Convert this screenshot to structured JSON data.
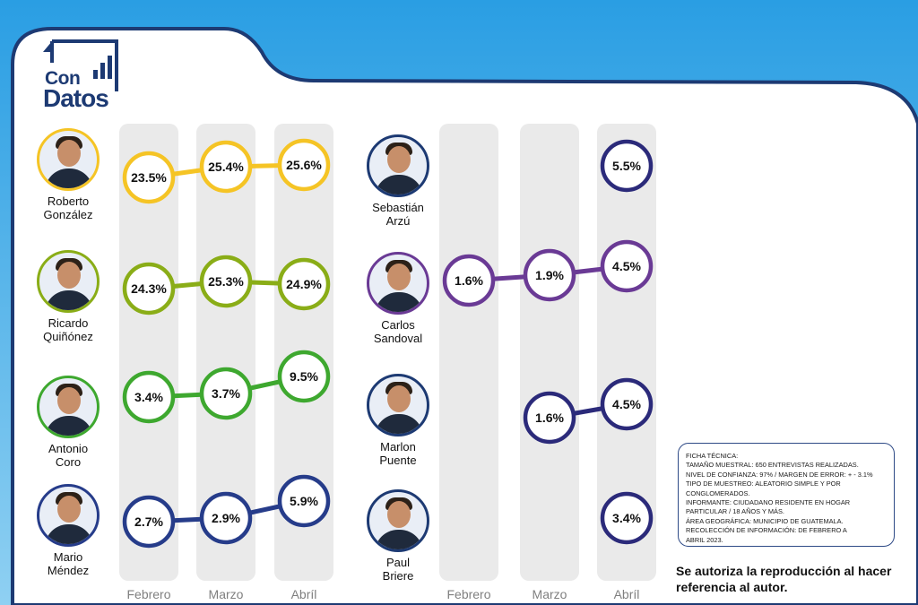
{
  "brand": {
    "line1": "Con",
    "line2": "Datos"
  },
  "colors": {
    "header_blue": "#2a9ee3",
    "frame_navy": "#1d3a73",
    "column_gray": "#eaeaea",
    "month_label": "#7f7f7f"
  },
  "chart_data": [
    {
      "type": "line",
      "categories": [
        "Febrero",
        "Marzo",
        "Abríl"
      ],
      "series": [
        {
          "name": "Roberto González",
          "color": "#f5c425",
          "values": [
            23.5,
            25.4,
            25.6
          ]
        },
        {
          "name": "Ricardo Quiñónez",
          "color": "#8aad17",
          "values": [
            24.3,
            25.3,
            24.9
          ]
        },
        {
          "name": "Antonio Coro",
          "color": "#3ea82f",
          "values": [
            3.4,
            3.7,
            9.5
          ]
        },
        {
          "name": "Mario Méndez",
          "color": "#263c8a",
          "values": [
            2.7,
            2.9,
            5.9
          ]
        }
      ],
      "value_suffix": "%"
    },
    {
      "type": "line",
      "categories": [
        "Febrero",
        "Marzo",
        "Abríl"
      ],
      "series": [
        {
          "name": "Sebastián Arzú",
          "color": "#2b2a7a",
          "values": [
            null,
            null,
            5.5
          ]
        },
        {
          "name": "Carlos Sandoval",
          "color": "#6a3a95",
          "values": [
            1.6,
            1.9,
            4.5
          ]
        },
        {
          "name": "Marlon Puente",
          "color": "#2b2a7a",
          "values": [
            null,
            1.6,
            4.5
          ]
        },
        {
          "name": "Paul Briere",
          "color": "#2b2a7a",
          "values": [
            null,
            null,
            3.4
          ]
        }
      ],
      "value_suffix": "%"
    }
  ],
  "candidates_left": [
    {
      "line1": "Roberto",
      "line2": "González"
    },
    {
      "line1": "Ricardo",
      "line2": "Quiñónez"
    },
    {
      "line1": "Antonio",
      "line2": "Coro"
    },
    {
      "line1": "Mario",
      "line2": "Méndez"
    }
  ],
  "candidates_right": [
    {
      "line1": "Sebastián",
      "line2": "Arzú"
    },
    {
      "line1": "Carlos",
      "line2": "Sandoval"
    },
    {
      "line1": "Marlon",
      "line2": "Puente"
    },
    {
      "line1": "Paul",
      "line2": "Briere"
    }
  ],
  "ficha": {
    "lines": [
      "FICHA TÉCNICA:",
      "TAMAÑO MUESTRAL: 650 ENTREVISTAS REALIZADAS.",
      "NIVEL DE CONFIANZA: 97% / MARGEN DE ERROR: + - 3.1%",
      "TIPO DE MUESTREO: ALEATORIO SIMPLE Y POR",
      "CONGLOMERADOS.",
      "INFORMANTE: CIUDADANO RESIDENTE EN HOGAR",
      "PARTICULAR /  18 AÑOS Y MÁS.",
      "ÁREA GEOGRÁFICA: MUNICIPIO DE GUATEMALA.",
      "RECOLECCIÓN DE INFORMACIÓN: DE FEBRERO A",
      "ABRIL 2023."
    ]
  },
  "note": "Se autoriza la reproducción al hacer referencia al autor."
}
